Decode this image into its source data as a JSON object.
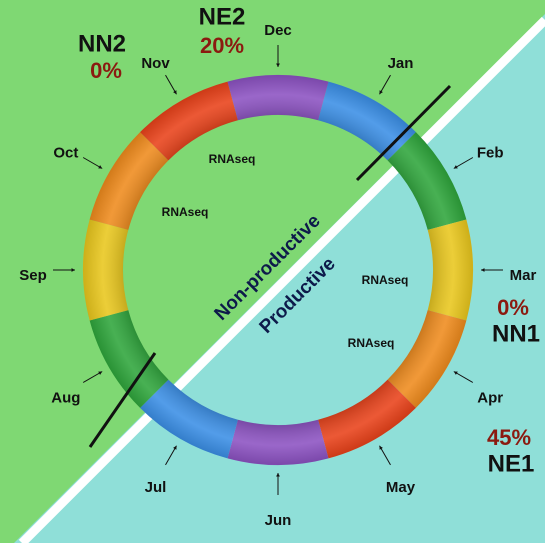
{
  "months": [
    "Jan",
    "Feb",
    "Mar",
    "Apr",
    "May",
    "Jun",
    "Jul",
    "Aug",
    "Sep",
    "Oct",
    "Nov",
    "Dec"
  ],
  "groups": [
    {
      "name": "NN2",
      "percent": "0%"
    },
    {
      "name": "NE2",
      "percent": "20%"
    },
    {
      "name": "NN1",
      "percent": "0%"
    },
    {
      "name": "NE1",
      "percent": "45%"
    }
  ],
  "rnaseq": [
    "RNAseq",
    "RNAseq",
    "RNAseq",
    "RNAseq"
  ],
  "regions": [
    "Non-productive",
    "Productive"
  ]
}
